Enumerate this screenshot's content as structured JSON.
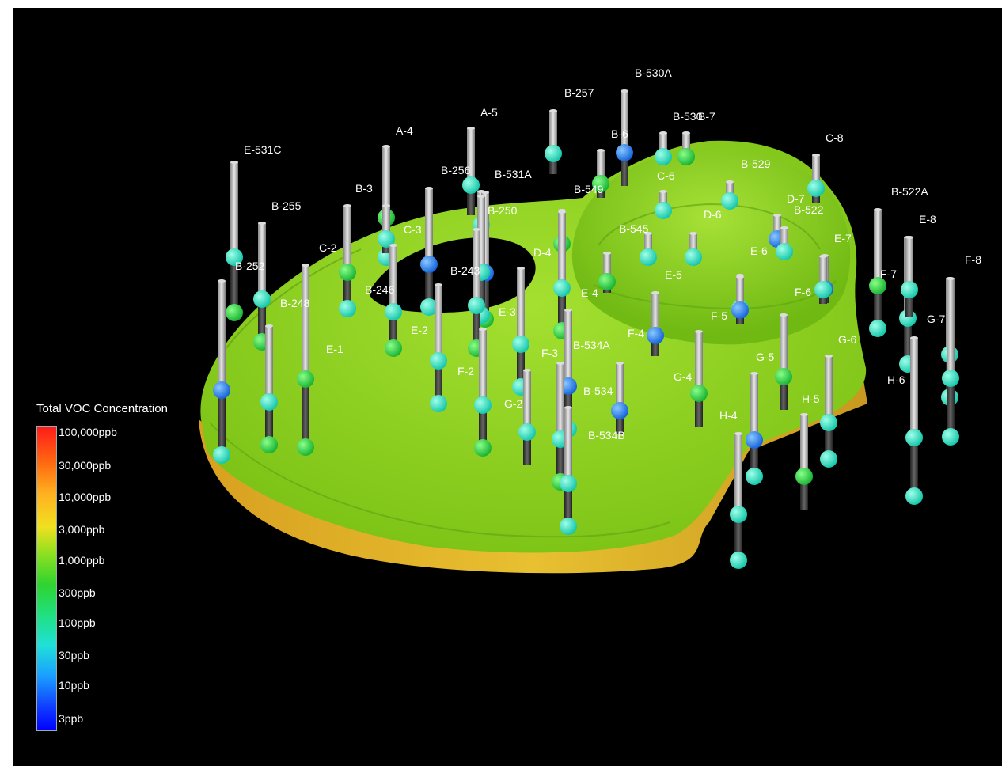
{
  "legend": {
    "title": "Total VOC Concentration",
    "entries": [
      "100,000ppb",
      "30,000ppb",
      "10,000ppb",
      "3,000ppb",
      "1,000ppb",
      "300ppb",
      "100ppb",
      "30ppb",
      "10ppb",
      "3ppb"
    ],
    "colors": [
      "#ff1a1a",
      "#ff6a10",
      "#ffb020",
      "#f0e020",
      "#8ce020",
      "#2fd32f",
      "#20e080",
      "#20e0d8",
      "#1aa0ff",
      "#0000ff"
    ]
  },
  "plume_color": "#8fd81e",
  "plume_rim_color": "#e0b020",
  "wells": [
    {
      "label": "E-531C"
    },
    {
      "label": "A-4"
    },
    {
      "label": "A-5"
    },
    {
      "label": "B-257"
    },
    {
      "label": "B-530A"
    },
    {
      "label": "B-530"
    },
    {
      "label": "B-7"
    },
    {
      "label": "C-8"
    },
    {
      "label": "B-256"
    },
    {
      "label": "B-531A"
    },
    {
      "label": "B-3"
    },
    {
      "label": "B-6"
    },
    {
      "label": "C-6"
    },
    {
      "label": "B-529"
    },
    {
      "label": "D-7"
    },
    {
      "label": "B-522"
    },
    {
      "label": "B-522A"
    },
    {
      "label": "E-8"
    },
    {
      "label": "B-255"
    },
    {
      "label": "C-3"
    },
    {
      "label": "B-250"
    },
    {
      "label": "B-549"
    },
    {
      "label": "D-6"
    },
    {
      "label": "B-545"
    },
    {
      "label": "E-7"
    },
    {
      "label": "F-8"
    },
    {
      "label": "C-2"
    },
    {
      "label": "D-4"
    },
    {
      "label": "E-6"
    },
    {
      "label": "B-252"
    },
    {
      "label": "B-243"
    },
    {
      "label": "E-5"
    },
    {
      "label": "F-7"
    },
    {
      "label": "B-246"
    },
    {
      "label": "E-4"
    },
    {
      "label": "F-6"
    },
    {
      "label": "B-248"
    },
    {
      "label": "E-3"
    },
    {
      "label": "G-7"
    },
    {
      "label": "F-5"
    },
    {
      "label": "E-2"
    },
    {
      "label": "F-4"
    },
    {
      "label": "E-1"
    },
    {
      "label": "G-6"
    },
    {
      "label": "B-534A"
    },
    {
      "label": "F-3"
    },
    {
      "label": "G-5"
    },
    {
      "label": "H-6"
    },
    {
      "label": "F-2"
    },
    {
      "label": "G-4"
    },
    {
      "label": "B-534"
    },
    {
      "label": "H-5"
    },
    {
      "label": "G-2"
    },
    {
      "label": "H-4"
    },
    {
      "label": "B-534B"
    }
  ]
}
